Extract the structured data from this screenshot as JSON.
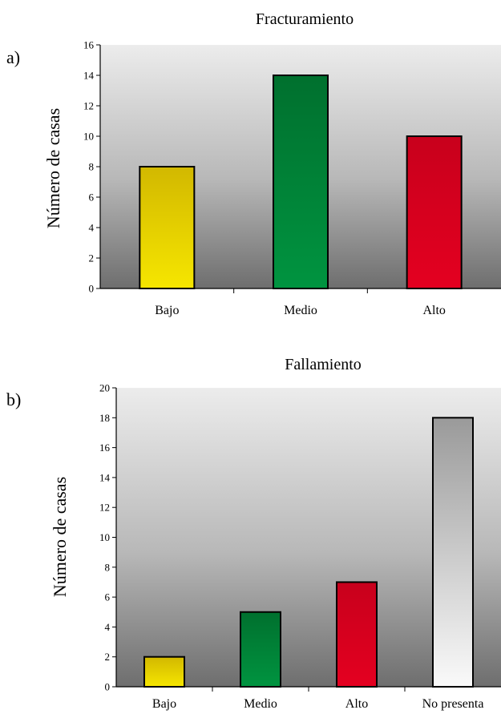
{
  "chart_data": [
    {
      "type": "bar",
      "panel_label": "a)",
      "title": "Fracturamiento",
      "xlabel": "",
      "ylabel": "Número de casas",
      "categories": [
        "Bajo",
        "Medio",
        "Alto"
      ],
      "values": [
        8,
        14,
        10
      ],
      "ylim": [
        0,
        16
      ],
      "yticks": [
        0,
        2,
        4,
        6,
        8,
        10,
        12,
        14,
        16
      ],
      "colors": [
        "#e8d000",
        "#00883a",
        "#d8001e"
      ],
      "grid": false,
      "legend": "none"
    },
    {
      "type": "bar",
      "panel_label": "b)",
      "title": "Fallamiento",
      "xlabel": "",
      "ylabel": "Número de casas",
      "categories": [
        "Bajo",
        "Medio",
        "Alto",
        "No presenta"
      ],
      "values": [
        2,
        5,
        7,
        18
      ],
      "ylim": [
        0,
        20
      ],
      "yticks": [
        0,
        2,
        4,
        6,
        8,
        10,
        12,
        14,
        16,
        18,
        20
      ],
      "colors": [
        "#e8d000",
        "#00883a",
        "#d8001e",
        "#d8d8d8"
      ],
      "grid": false,
      "legend": "none"
    }
  ]
}
